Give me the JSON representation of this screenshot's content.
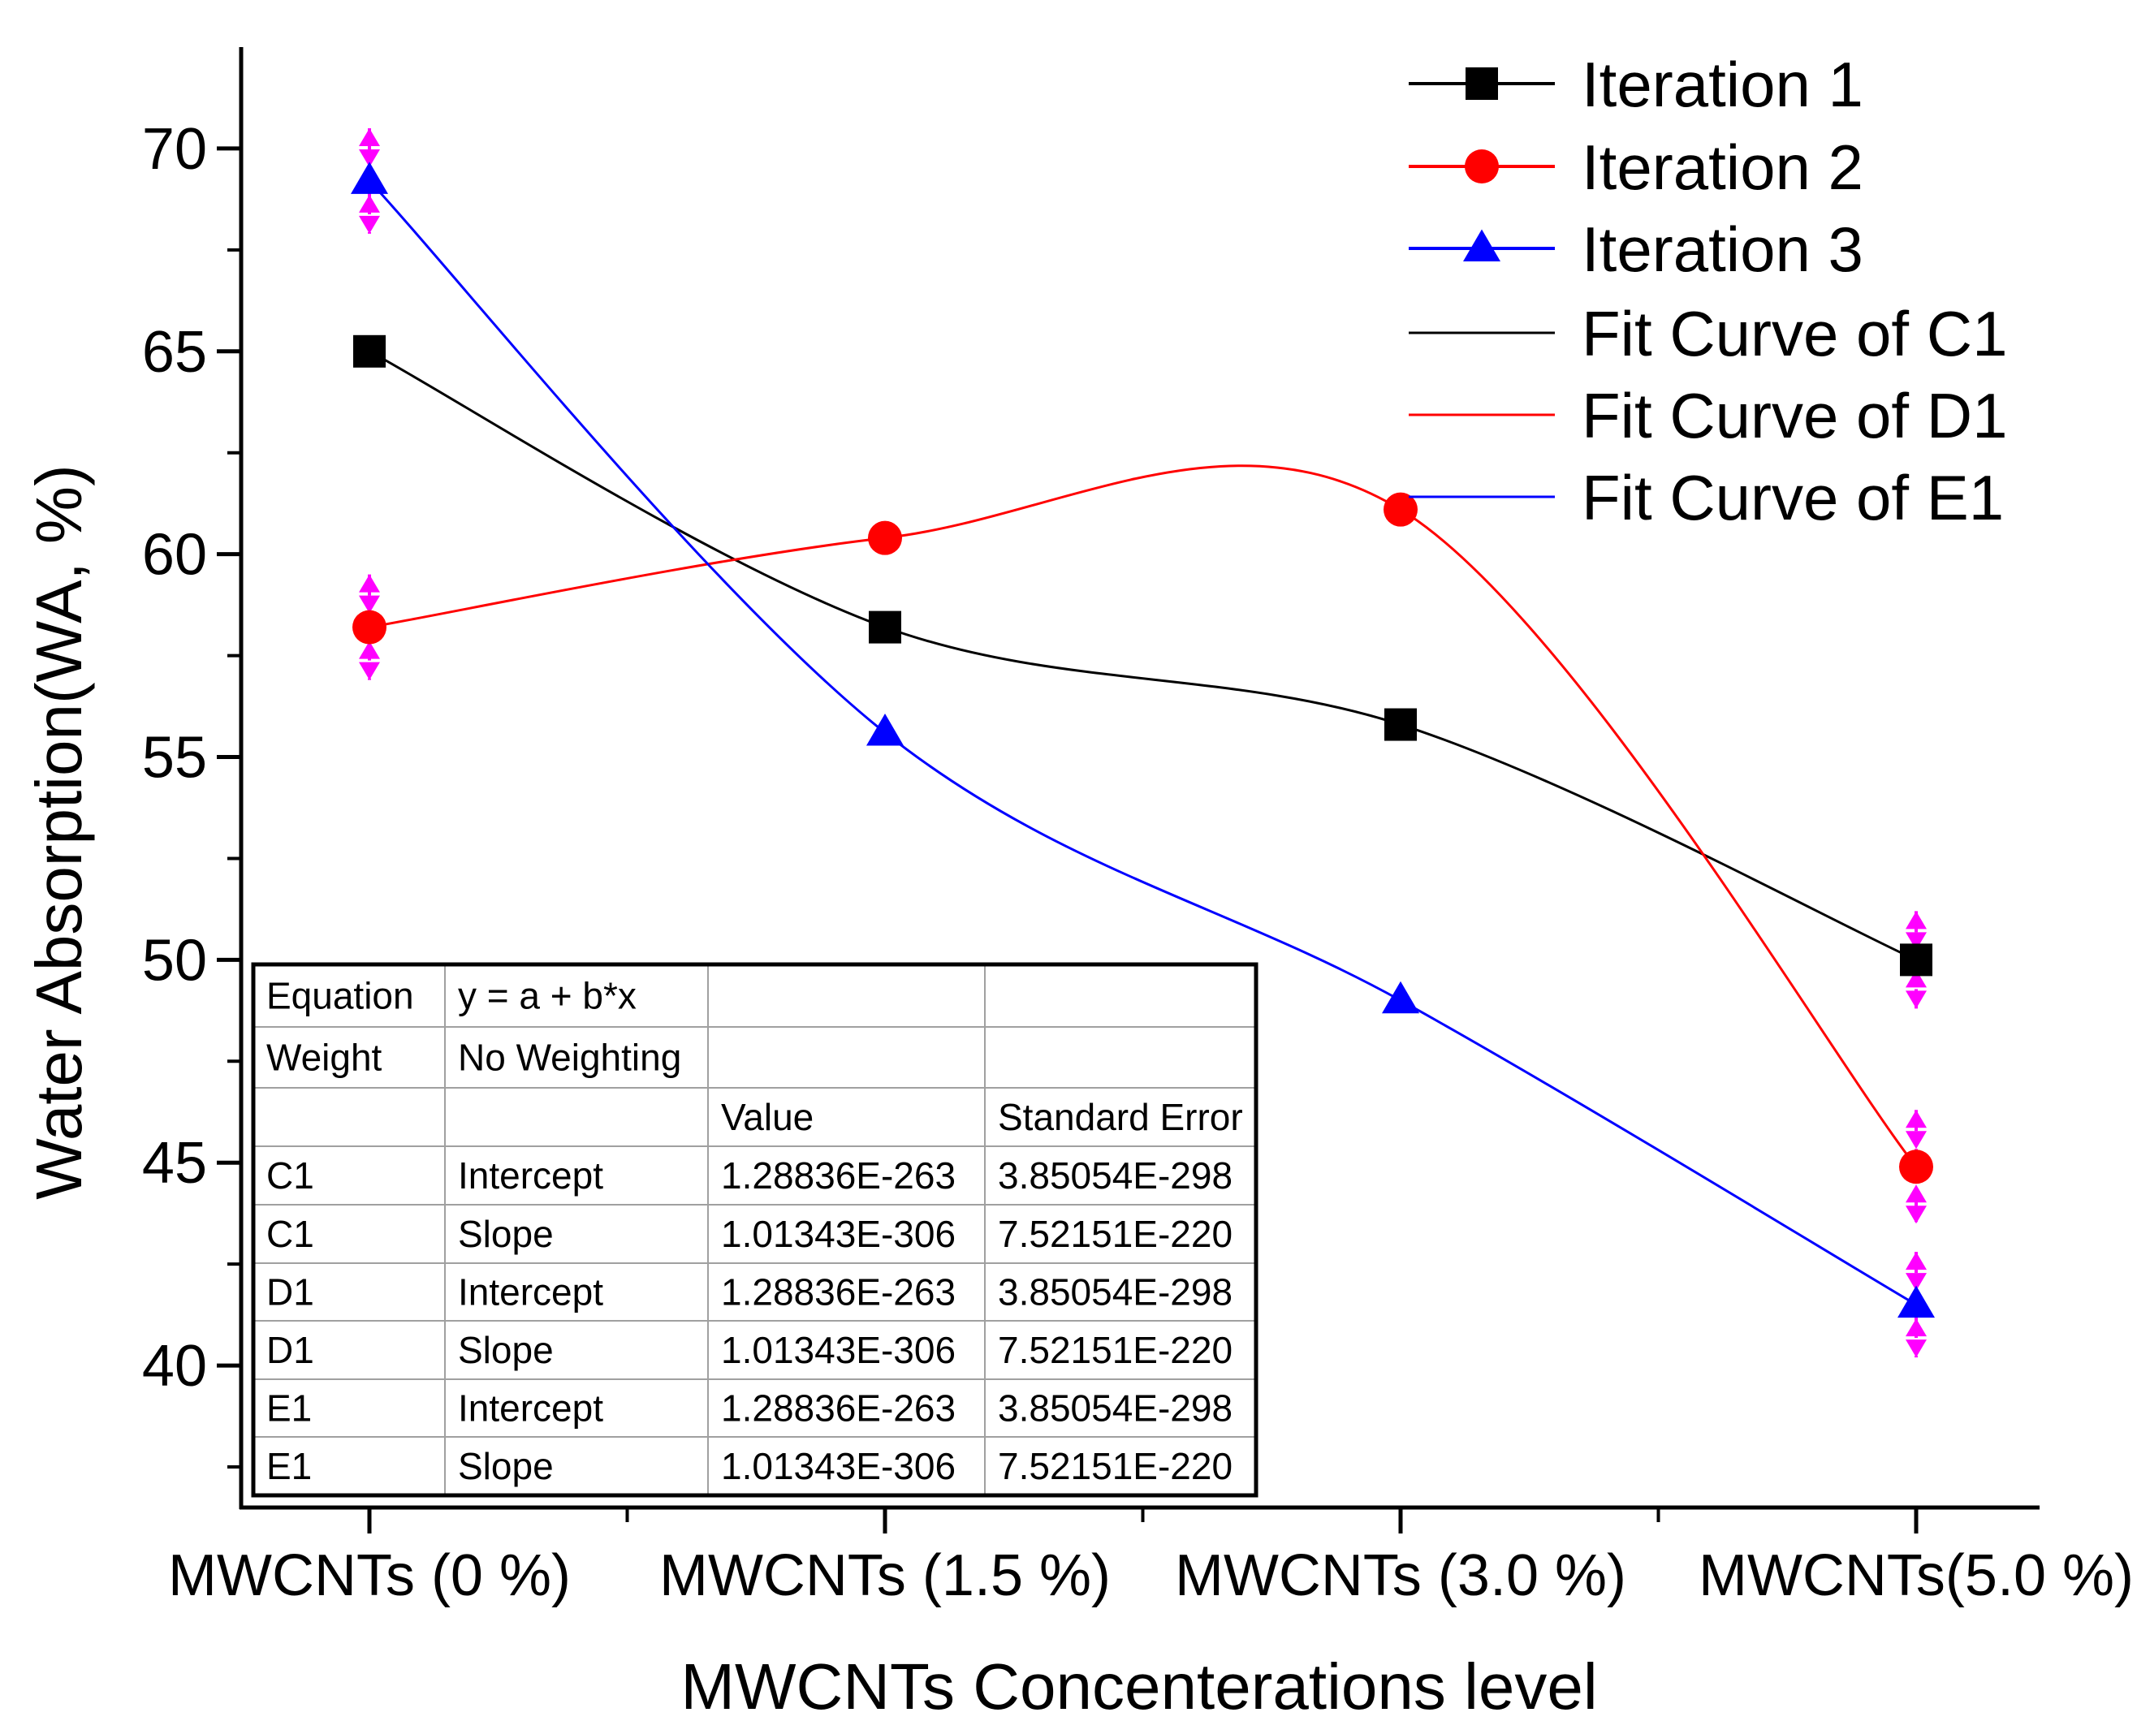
{
  "chart_data": {
    "type": "line",
    "title": "",
    "xlabel": "MWCNTs Concenterations level",
    "ylabel": "Water Absorption(WA, %)",
    "categories": [
      "MWCNTs (0 %)",
      "MWCNTs (1.5 %)",
      "MWCNTs (3.0 %)",
      "MWCNTs(5.0 %)"
    ],
    "ylim": [
      36.5,
      72.5
    ],
    "yticks": [
      40,
      45,
      50,
      55,
      60,
      65,
      70
    ],
    "ytick_labels": [
      "40",
      "45",
      "50",
      "55",
      "60",
      "65",
      "70"
    ],
    "legend_position": "top-right",
    "series": [
      {
        "name": "Iteration 1",
        "values": [
          65.0,
          58.2,
          55.8,
          50.0
        ],
        "color": "#000000",
        "marker": "square",
        "error": [
          0,
          0,
          0,
          1.2
        ]
      },
      {
        "name": "Iteration 2",
        "values": [
          58.2,
          60.4,
          61.1,
          44.9
        ],
        "color": "#ff0000",
        "marker": "circle",
        "error": [
          1.3,
          0,
          0,
          1.4
        ]
      },
      {
        "name": "Iteration 3",
        "values": [
          69.2,
          55.6,
          49.0,
          41.5
        ],
        "color": "#0000ff",
        "marker": "triangle",
        "error": [
          1.3,
          0,
          0,
          1.3
        ]
      }
    ],
    "fit_curves": [
      {
        "name": "Fit Curve of C1",
        "color": "#000000"
      },
      {
        "name": "Fit Curve of D1",
        "color": "#ff0000"
      },
      {
        "name": "Fit Curve of E1",
        "color": "#0000ff"
      }
    ],
    "error_bar_color": "#ff00ff"
  },
  "fit_table": {
    "rows": [
      [
        "Equation",
        "y = a + b*x",
        "",
        ""
      ],
      [
        "Weight",
        "No Weighting",
        "",
        ""
      ],
      [
        "",
        "",
        "Value",
        "Standard Error"
      ],
      [
        "C1",
        "Intercept",
        "1.28836E-263",
        "3.85054E-298"
      ],
      [
        "C1",
        "Slope",
        "1.01343E-306",
        "7.52151E-220"
      ],
      [
        "D1",
        "Intercept",
        "1.28836E-263",
        "3.85054E-298"
      ],
      [
        "D1",
        "Slope",
        "1.01343E-306",
        "7.52151E-220"
      ],
      [
        "E1",
        "Intercept",
        "1.28836E-263",
        "3.85054E-298"
      ],
      [
        "E1",
        "Slope",
        "1.01343E-306",
        "7.52151E-220"
      ]
    ]
  }
}
